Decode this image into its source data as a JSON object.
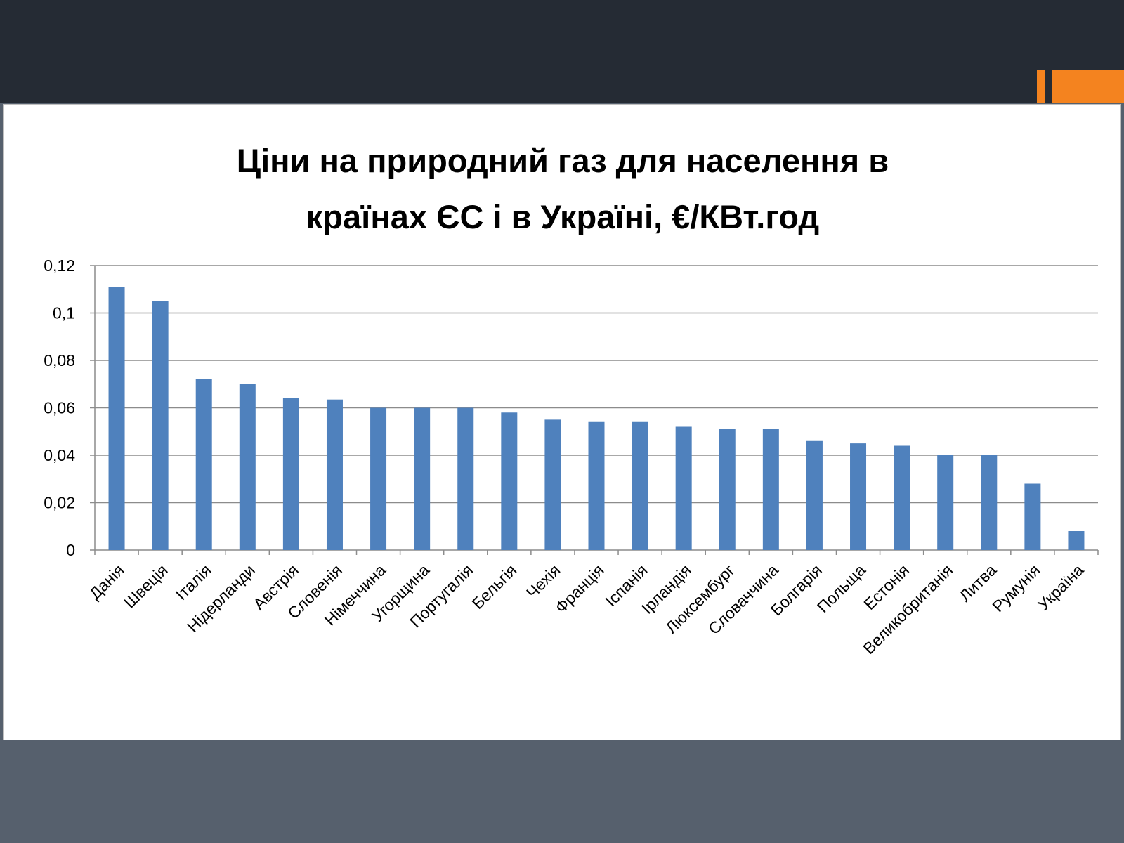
{
  "colors": {
    "top_band": "#252b34",
    "accent": "#f4831f",
    "background": "#56606d",
    "bar": "#4f81bd",
    "grid": "#8c8c8c"
  },
  "chart_data": {
    "type": "bar",
    "title": "Ціни на природний газ для населення в\nкраїнах ЄС і в Україні, €/КВт.год",
    "xlabel": "",
    "ylabel": "",
    "ylim": [
      0,
      0.12
    ],
    "yticks": [
      "0",
      "0,02",
      "0,04",
      "0,06",
      "0,08",
      "0,1",
      "0,12"
    ],
    "grid": true,
    "legend": false,
    "categories": [
      "Данія",
      "Швеція",
      "Італія",
      "Нідерланди",
      "Австрія",
      "Словенія",
      "Німеччина",
      "Угорщина",
      "Португалія",
      "Бельгія",
      "Чехія",
      "Франція",
      "Іспанія",
      "Ірландія",
      "Люксембург",
      "Словаччина",
      "Болгарія",
      "Польща",
      "Естонія",
      "Великобританія",
      "Литва",
      "Румунія",
      "Україна"
    ],
    "values": [
      0.111,
      0.105,
      0.072,
      0.07,
      0.064,
      0.0635,
      0.06,
      0.06,
      0.06,
      0.058,
      0.055,
      0.054,
      0.054,
      0.052,
      0.051,
      0.051,
      0.046,
      0.045,
      0.044,
      0.04,
      0.04,
      0.028,
      0.008
    ]
  }
}
